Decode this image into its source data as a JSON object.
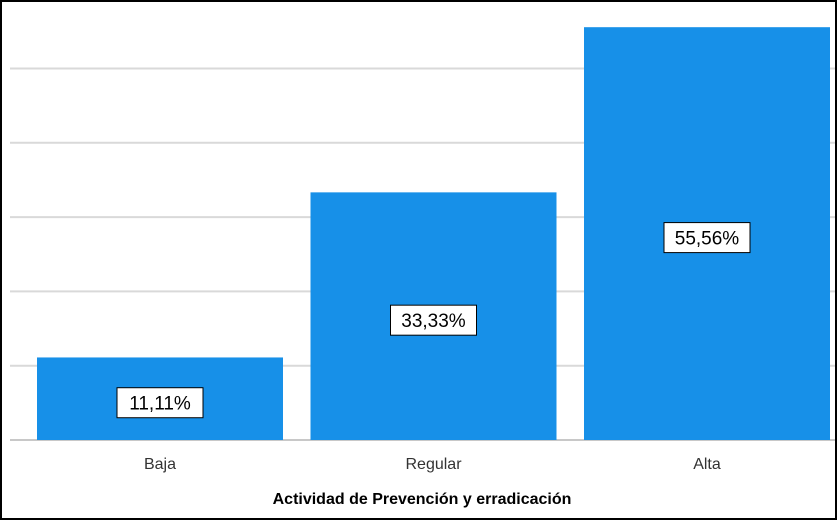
{
  "chart_data": {
    "type": "bar",
    "categories": [
      "Baja",
      "Regular",
      "Alta"
    ],
    "values": [
      11.11,
      33.33,
      55.56
    ],
    "data_labels": [
      "11,11%",
      "33,33%",
      "55,56%"
    ],
    "title": "",
    "xlabel": "Actividad de Prevención y erradicación",
    "ylabel": "",
    "ylim": [
      0,
      60
    ],
    "grid": true,
    "bar_color": "#1790e8",
    "grid_color": "#d9d9d9"
  }
}
